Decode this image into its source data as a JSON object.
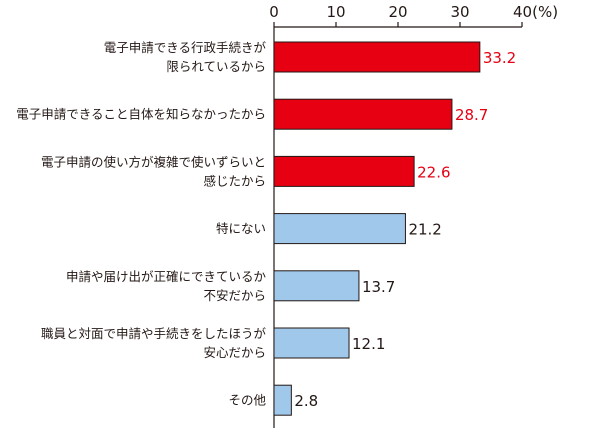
{
  "chart_data": {
    "type": "bar",
    "orientation": "horizontal",
    "title": "",
    "xlabel": "",
    "ylabel": "",
    "unit_label": "(%)",
    "xlim": [
      0,
      40
    ],
    "ticks": [
      0,
      10,
      20,
      30,
      40
    ],
    "tick_labels": [
      "0",
      "10",
      "20",
      "30",
      "40"
    ],
    "grid": false,
    "categories": [
      [
        "電子申請できる行政手続きが",
        "限られているから"
      ],
      [
        "電子申請できること自体を知らなかったから"
      ],
      [
        "電子申請の使い方が複雑で使いずらいと",
        "感じたから"
      ],
      [
        "特にない"
      ],
      [
        "申請や届け出が正確にできているか",
        "不安だから"
      ],
      [
        "職員と対面で申請や手続きをしたほうが",
        "安心だから"
      ],
      [
        "その他"
      ]
    ],
    "values": [
      33.2,
      28.7,
      22.6,
      21.2,
      13.7,
      12.1,
      2.8
    ],
    "value_labels": [
      "33.2",
      "28.7",
      "22.6",
      "21.2",
      "13.7",
      "12.1",
      "2.8"
    ],
    "highlight": [
      true,
      true,
      true,
      false,
      false,
      false,
      false
    ],
    "colors": {
      "highlight_fill": "#e60012",
      "highlight_label": "#e60012",
      "normal_fill": "#a0c8eb",
      "normal_label": "#231815",
      "bar_stroke": "#231815"
    }
  }
}
